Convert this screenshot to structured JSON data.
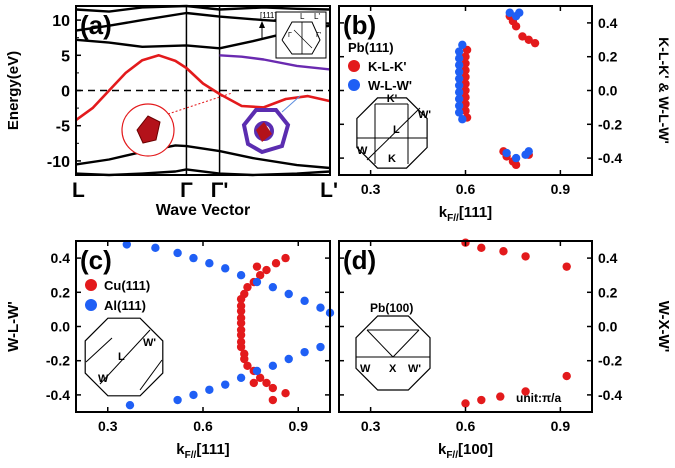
{
  "chart_data": [
    {
      "type": "line",
      "panel": "(a)",
      "ylabel": "Energy(eV)",
      "xlabel": "Wave Vector",
      "ylim": [
        -12,
        12
      ],
      "yticks": [
        -10,
        -5,
        0,
        5,
        10
      ],
      "x_tick_labels": [
        "L",
        "Γ",
        "Γ'",
        "L'"
      ],
      "x_tick_positions": [
        0,
        1,
        1.3,
        2.3
      ],
      "inset_labels": [
        "[111]",
        "L",
        "L'",
        "Γ",
        "Γ'"
      ],
      "series": [
        {
          "color": "#000000",
          "x": [
            0,
            0.3,
            0.6,
            1.0,
            1.3,
            1.6,
            2.0,
            2.3
          ],
          "y": [
            7.2,
            6.8,
            6.2,
            6.4,
            6.0,
            7.0,
            8.5,
            9.2
          ]
        },
        {
          "color": "#000000",
          "x": [
            0,
            0.3,
            0.6,
            1.0,
            1.3,
            1.7,
            2.0,
            2.3
          ],
          "y": [
            8.5,
            9.2,
            10.0,
            11.0,
            10.5,
            10.0,
            9.7,
            9.5
          ]
        },
        {
          "color": "#000000",
          "x": [
            0,
            0.3,
            0.6,
            1.0,
            1.3,
            1.7,
            2.0,
            2.3
          ],
          "y": [
            11.5,
            11.2,
            11.8,
            12.0,
            11.5,
            11.8,
            11.6,
            11.5
          ]
        },
        {
          "color": "#000000",
          "x": [
            0,
            0.3,
            0.6,
            0.9,
            1.0,
            1.3,
            1.6,
            2.0,
            2.3
          ],
          "y": [
            -10.5,
            -9.8,
            -8.7,
            -7.8,
            -7.9,
            -8.6,
            -9.6,
            -10.6,
            -11.0
          ]
        },
        {
          "color": "#000000",
          "x": [
            0,
            0.3,
            0.6,
            0.9,
            1.0,
            1.3,
            1.6,
            2.0,
            2.3
          ],
          "y": [
            -11.8,
            -12.0,
            -11.8,
            -11.5,
            -11.2,
            -11.8,
            -12.0,
            -11.8,
            -11.5
          ]
        },
        {
          "color": "#6a2ab0",
          "x": [
            1.3,
            1.5,
            1.7,
            2.0,
            2.3
          ],
          "y": [
            5.0,
            4.8,
            4.4,
            3.5,
            3.0
          ]
        },
        {
          "color": "#e31a1c",
          "x": [
            0,
            0.15,
            0.3,
            0.45,
            0.6,
            0.75,
            0.9,
            1.0,
            1.15,
            1.3,
            1.5,
            1.7,
            1.9,
            2.1,
            2.3
          ],
          "y": [
            -4.2,
            -2.5,
            0.0,
            2.5,
            4.3,
            5.0,
            4.2,
            3.2,
            1.0,
            -0.5,
            -2.2,
            -2.4,
            -1.2,
            -0.8,
            -1.5
          ]
        }
      ],
      "fermi_level": 0
    },
    {
      "type": "scatter",
      "panel": "(b)",
      "title": "Pb(111)",
      "xlabel": "k_F//[111]",
      "ylabel": "K-L-K' & W-L-W'",
      "xlim": [
        0.2,
        1.0
      ],
      "ylim": [
        -0.5,
        0.5
      ],
      "xticks": [
        0.3,
        0.6,
        0.9
      ],
      "yticks": [
        -0.4,
        -0.2,
        0.0,
        0.2,
        0.4
      ],
      "bz_labels": [
        "K'",
        "W'",
        "L",
        "W",
        "K"
      ],
      "series": [
        {
          "name": "K-L-K'",
          "color": "#e31a1c",
          "points": [
            [
              0.6,
              0.2
            ],
            [
              0.6,
              0.16
            ],
            [
              0.6,
              0.12
            ],
            [
              0.6,
              0.08
            ],
            [
              0.6,
              0.04
            ],
            [
              0.6,
              0.0
            ],
            [
              0.6,
              -0.04
            ],
            [
              0.6,
              -0.08
            ],
            [
              0.6,
              -0.12
            ],
            [
              0.605,
              -0.16
            ],
            [
              0.605,
              0.24
            ],
            [
              0.72,
              -0.36
            ],
            [
              0.73,
              -0.39
            ],
            [
              0.75,
              -0.42
            ],
            [
              0.76,
              -0.44
            ],
            [
              0.74,
              0.44
            ],
            [
              0.75,
              0.41
            ],
            [
              0.76,
              0.38
            ],
            [
              0.78,
              0.32
            ],
            [
              0.8,
              0.3
            ],
            [
              0.82,
              0.28
            ],
            [
              0.8,
              -0.38
            ]
          ]
        },
        {
          "name": "W-L-W'",
          "color": "#1f5ff5",
          "points": [
            [
              0.59,
              0.27
            ],
            [
              0.58,
              0.23
            ],
            [
              0.58,
              0.19
            ],
            [
              0.58,
              0.15
            ],
            [
              0.58,
              0.11
            ],
            [
              0.58,
              0.07
            ],
            [
              0.58,
              0.03
            ],
            [
              0.58,
              -0.01
            ],
            [
              0.58,
              -0.05
            ],
            [
              0.58,
              -0.09
            ],
            [
              0.58,
              -0.13
            ],
            [
              0.59,
              -0.17
            ],
            [
              0.73,
              -0.37
            ],
            [
              0.76,
              -0.4
            ],
            [
              0.79,
              -0.38
            ],
            [
              0.8,
              -0.36
            ],
            [
              0.74,
              0.46
            ],
            [
              0.76,
              0.44
            ],
            [
              0.77,
              0.46
            ]
          ]
        }
      ]
    },
    {
      "type": "scatter",
      "panel": "(c)",
      "xlabel": "k_F//[111]",
      "ylabel": "W-L-W'",
      "xlim": [
        0.2,
        1.0
      ],
      "ylim": [
        -0.5,
        0.5
      ],
      "xticks": [
        0.3,
        0.6,
        0.9
      ],
      "yticks": [
        -0.4,
        -0.2,
        0.0,
        0.2,
        0.4
      ],
      "bz_labels": [
        "L",
        "W'",
        "W"
      ],
      "series": [
        {
          "name": "Cu(111)",
          "color": "#e31a1c",
          "points": [
            [
              0.86,
              0.4
            ],
            [
              0.83,
              0.37
            ],
            [
              0.8,
              0.33
            ],
            [
              0.78,
              0.3
            ],
            [
              0.76,
              0.26
            ],
            [
              0.74,
              0.23
            ],
            [
              0.73,
              0.19
            ],
            [
              0.72,
              0.16
            ],
            [
              0.72,
              0.12
            ],
            [
              0.72,
              0.09
            ],
            [
              0.72,
              0.05
            ],
            [
              0.72,
              0.02
            ],
            [
              0.72,
              -0.02
            ],
            [
              0.72,
              -0.05
            ],
            [
              0.72,
              -0.09
            ],
            [
              0.72,
              -0.12
            ],
            [
              0.73,
              -0.16
            ],
            [
              0.73,
              -0.19
            ],
            [
              0.74,
              -0.23
            ],
            [
              0.76,
              -0.26
            ],
            [
              0.78,
              -0.3
            ],
            [
              0.8,
              -0.33
            ],
            [
              0.82,
              -0.36
            ],
            [
              0.86,
              -0.39
            ],
            [
              0.82,
              -0.43
            ],
            [
              0.76,
              -0.33
            ],
            [
              0.77,
              0.35
            ]
          ]
        },
        {
          "name": "Al(111)",
          "color": "#1f5ff5",
          "points": [
            [
              0.36,
              0.48
            ],
            [
              0.45,
              0.46
            ],
            [
              0.52,
              0.43
            ],
            [
              0.57,
              0.4
            ],
            [
              0.62,
              0.37
            ],
            [
              0.67,
              0.34
            ],
            [
              0.72,
              0.3
            ],
            [
              0.77,
              0.26
            ],
            [
              0.82,
              0.23
            ],
            [
              0.87,
              0.19
            ],
            [
              0.92,
              0.15
            ],
            [
              0.97,
              0.11
            ],
            [
              1.0,
              0.08
            ],
            [
              0.97,
              -0.12
            ],
            [
              0.92,
              -0.15
            ],
            [
              0.87,
              -0.19
            ],
            [
              0.82,
              -0.23
            ],
            [
              0.77,
              -0.26
            ],
            [
              0.72,
              -0.3
            ],
            [
              0.67,
              -0.34
            ],
            [
              0.62,
              -0.37
            ],
            [
              0.57,
              -0.4
            ],
            [
              0.52,
              -0.43
            ],
            [
              0.37,
              -0.46
            ]
          ]
        }
      ]
    },
    {
      "type": "scatter",
      "panel": "(d)",
      "title": "Pb(100)",
      "xlabel": "k_F//[100]",
      "ylabel": "W-X-W'",
      "xlim": [
        0.2,
        1.0
      ],
      "ylim": [
        -0.5,
        0.5
      ],
      "xticks": [
        0.3,
        0.6,
        0.9
      ],
      "yticks": [
        -0.4,
        -0.2,
        0.0,
        0.2,
        0.4
      ],
      "annotation": "unit:π/a",
      "bz_labels": [
        "W",
        "X",
        "W'"
      ],
      "series": [
        {
          "name": "Pb(100)",
          "color": "#e31a1c",
          "points": [
            [
              0.6,
              0.49
            ],
            [
              0.65,
              0.46
            ],
            [
              0.72,
              0.44
            ],
            [
              0.79,
              0.41
            ],
            [
              0.92,
              0.35
            ],
            [
              0.6,
              -0.45
            ],
            [
              0.65,
              -0.43
            ],
            [
              0.71,
              -0.41
            ],
            [
              0.79,
              -0.38
            ],
            [
              0.92,
              -0.29
            ]
          ]
        }
      ]
    }
  ]
}
